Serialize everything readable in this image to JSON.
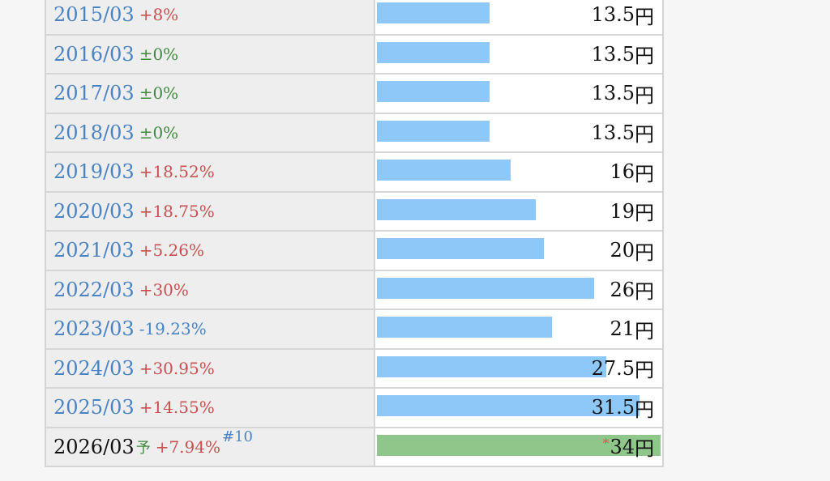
{
  "chart_data": {
    "type": "bar",
    "orientation": "horizontal",
    "value_unit": "円",
    "xlim": [
      0,
      34
    ],
    "rows": [
      {
        "year": "2015/03",
        "change": "+8%",
        "value": 13.5,
        "value_label": "13.5",
        "trend": "up"
      },
      {
        "year": "2016/03",
        "change": "±0%",
        "value": 13.5,
        "value_label": "13.5",
        "trend": "flat"
      },
      {
        "year": "2017/03",
        "change": "±0%",
        "value": 13.5,
        "value_label": "13.5",
        "trend": "flat"
      },
      {
        "year": "2018/03",
        "change": "±0%",
        "value": 13.5,
        "value_label": "13.5",
        "trend": "flat"
      },
      {
        "year": "2019/03",
        "change": "+18.52%",
        "value": 16,
        "value_label": "16",
        "trend": "up"
      },
      {
        "year": "2020/03",
        "change": "+18.75%",
        "value": 19,
        "value_label": "19",
        "trend": "up"
      },
      {
        "year": "2021/03",
        "change": "+5.26%",
        "value": 20,
        "value_label": "20",
        "trend": "up"
      },
      {
        "year": "2022/03",
        "change": "+30%",
        "value": 26,
        "value_label": "26",
        "trend": "up"
      },
      {
        "year": "2023/03",
        "change": "-19.23%",
        "value": 21,
        "value_label": "21",
        "trend": "down"
      },
      {
        "year": "2024/03",
        "change": "+30.95%",
        "value": 27.5,
        "value_label": "27.5",
        "trend": "up"
      },
      {
        "year": "2025/03",
        "change": "+14.55%",
        "value": 31.5,
        "value_label": "31.5",
        "trend": "up"
      },
      {
        "year": "2026/03",
        "forecast_mark": "予",
        "change": "+7.94%",
        "note": "#10",
        "value": 34,
        "value_label": "34",
        "value_prefix": "*",
        "trend": "up",
        "forecast": true
      }
    ],
    "colors": {
      "bar": "#8ec8f8",
      "forecast_bar": "#8fc78a",
      "up": "#c8504f",
      "flat": "#3f8a3f",
      "down": "#4a83c4"
    }
  }
}
